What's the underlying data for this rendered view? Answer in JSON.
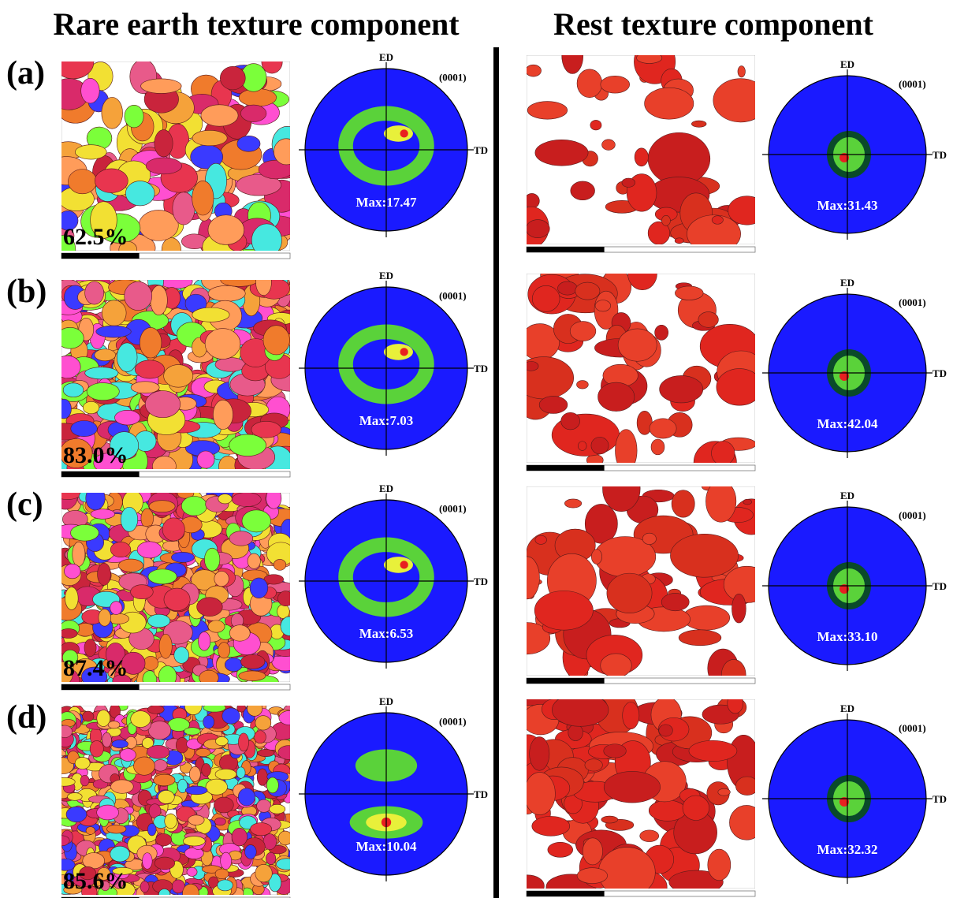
{
  "headers": [
    "Rare earth texture component",
    "Rest texture component"
  ],
  "rows": [
    {
      "label": "(a)",
      "rare_earth": {
        "fraction": "62.5%",
        "pole_figure": {
          "top": "ED",
          "right": "TD",
          "plane": "(0001)",
          "max": "Max:17.47"
        }
      },
      "rest": {
        "pole_figure": {
          "top": "ED",
          "right": "TD",
          "plane": "(0001)",
          "max": "Max:31.43"
        }
      }
    },
    {
      "label": "(b)",
      "rare_earth": {
        "fraction": "83.0%",
        "pole_figure": {
          "top": "ED",
          "right": "TD",
          "plane": "(0001)",
          "max": "Max:7.03"
        }
      },
      "rest": {
        "pole_figure": {
          "top": "ED",
          "right": "TD",
          "plane": "(0001)",
          "max": "Max:42.04"
        }
      }
    },
    {
      "label": "(c)",
      "rare_earth": {
        "fraction": "87.4%",
        "pole_figure": {
          "top": "ED",
          "right": "TD",
          "plane": "(0001)",
          "max": "Max:6.53"
        }
      },
      "rest": {
        "pole_figure": {
          "top": "ED",
          "right": "TD",
          "plane": "(0001)",
          "max": "Max:33.10"
        }
      }
    },
    {
      "label": "(d)",
      "rare_earth": {
        "fraction": "85.6%",
        "pole_figure": {
          "top": "ED",
          "right": "TD",
          "plane": "(0001)",
          "max": "Max:10.04"
        }
      },
      "rest": {
        "pole_figure": {
          "top": "ED",
          "right": "TD",
          "plane": "(0001)",
          "max": "Max:32.32"
        }
      }
    }
  ]
}
